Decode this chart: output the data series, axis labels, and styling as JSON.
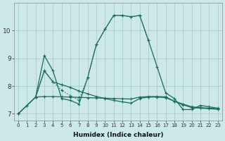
{
  "bg_color": "#cce8e8",
  "line_color": "#1a6b5a",
  "grid_color": "#aacccc",
  "xlabel": "Humidex (Indice chaleur)",
  "xticks": [
    0,
    1,
    2,
    3,
    4,
    5,
    6,
    7,
    8,
    9,
    10,
    11,
    12,
    13,
    14,
    15,
    16,
    17,
    18,
    19,
    20,
    21,
    22,
    23
  ],
  "yticks": [
    7,
    8,
    9,
    10
  ],
  "ylim": [
    6.75,
    11.0
  ],
  "xlim": [
    -0.5,
    23.5
  ],
  "line_dotted_x": [
    0,
    1,
    2,
    3,
    4,
    5,
    6,
    7,
    8,
    9,
    10,
    11,
    12,
    13,
    14,
    15
  ],
  "line_dotted_y": [
    7.0,
    7.3,
    7.6,
    8.55,
    8.15,
    7.85,
    7.65,
    7.5,
    8.3,
    9.5,
    10.05,
    10.55,
    10.55,
    10.5,
    10.55,
    9.65
  ],
  "line_main_x": [
    0,
    1,
    2,
    3,
    4,
    5,
    6,
    7,
    8,
    9,
    10,
    11,
    12,
    13,
    14,
    15,
    16,
    17,
    18,
    19,
    20,
    21,
    22,
    23
  ],
  "line_main_y": [
    7.0,
    7.3,
    7.6,
    9.1,
    8.55,
    7.55,
    7.48,
    7.35,
    8.3,
    9.5,
    10.05,
    10.55,
    10.55,
    10.5,
    10.55,
    9.65,
    8.7,
    7.75,
    7.55,
    7.15,
    7.15,
    7.3,
    7.25,
    7.2
  ],
  "line_flat_x": [
    0,
    2,
    3,
    4,
    5,
    6,
    7,
    8,
    9,
    10,
    11,
    12,
    13,
    14,
    15,
    16,
    17,
    18,
    19,
    20,
    21,
    22,
    23
  ],
  "line_flat_y": [
    7.0,
    7.6,
    7.62,
    7.62,
    7.61,
    7.6,
    7.59,
    7.58,
    7.57,
    7.56,
    7.55,
    7.54,
    7.53,
    7.6,
    7.62,
    7.62,
    7.61,
    7.45,
    7.35,
    7.25,
    7.22,
    7.2,
    7.18
  ],
  "line_decline_x": [
    2,
    3,
    4,
    5,
    6,
    7,
    8,
    9,
    10,
    11,
    12,
    13,
    14,
    15,
    16,
    17,
    18,
    19,
    20,
    21,
    22,
    23
  ],
  "line_decline_y": [
    7.6,
    8.55,
    8.15,
    8.05,
    7.95,
    7.82,
    7.72,
    7.62,
    7.55,
    7.48,
    7.43,
    7.38,
    7.55,
    7.6,
    7.6,
    7.58,
    7.45,
    7.32,
    7.22,
    7.2,
    7.18,
    7.16
  ]
}
